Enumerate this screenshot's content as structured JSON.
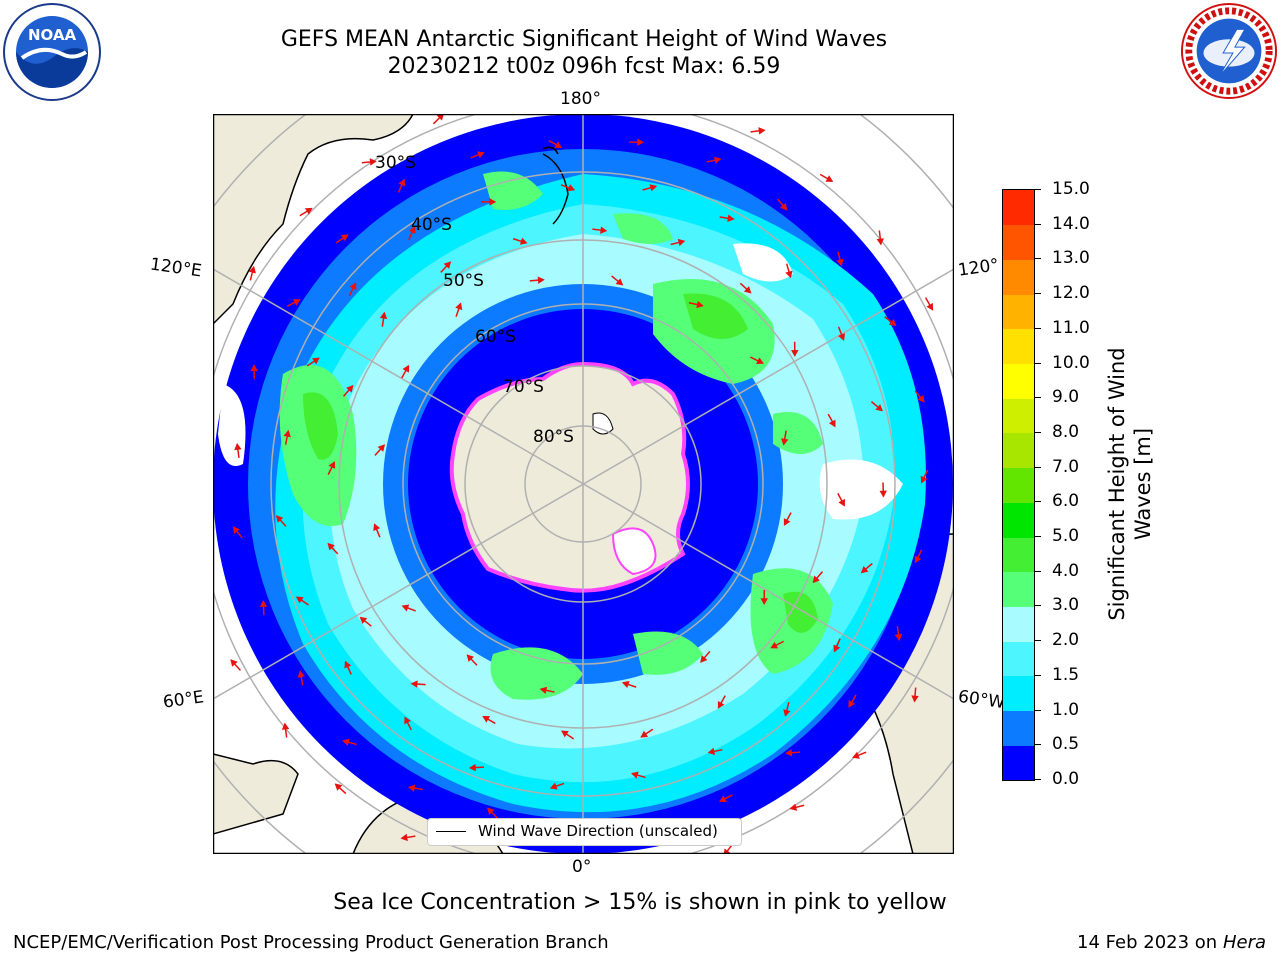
{
  "title": {
    "line1": "GEFS MEAN Antarctic Significant Height of Wind Waves",
    "line2": "20230212 t00z 096h fcst   Max: 6.59"
  },
  "logos": {
    "left": "noaa-logo",
    "left_text": "NOAA",
    "right": "national-weather-service-logo",
    "right_text": "NATIONAL WEATHER SERVICE"
  },
  "map": {
    "projection": "south-polar-stereographic",
    "lon_labels": {
      "top": "180°",
      "bottom": "0°",
      "left_upper": "120°E",
      "left_lower": "60°E",
      "right_upper": "120°",
      "right_lower": "60°W"
    },
    "lat_labels": [
      "30°S",
      "40°S",
      "50°S",
      "60°S",
      "70°S",
      "80°S"
    ],
    "legend": "Wind Wave Direction (unscaled)",
    "colors": {
      "land": "#efebdb",
      "coast": "#000000",
      "grid": "#b0b0b0",
      "ice_pink": "#ff44ff",
      "ice_white": "#ffffff",
      "arrow": "#e8120e"
    }
  },
  "colorbar": {
    "label": "Significant Height of Wind Waves [m]",
    "ticks": [
      "0.0",
      "0.5",
      "1.0",
      "1.5",
      "2.0",
      "3.0",
      "4.0",
      "5.0",
      "6.0",
      "7.0",
      "8.0",
      "9.0",
      "10.0",
      "11.0",
      "12.0",
      "13.0",
      "14.0",
      "15.0"
    ],
    "colors": [
      "#0000ff",
      "#0c7bff",
      "#00ecff",
      "#4cf5ff",
      "#a8fbff",
      "#55ff77",
      "#44ef33",
      "#00e600",
      "#62e600",
      "#a8e600",
      "#cef000",
      "#ffff00",
      "#ffe000",
      "#ffb200",
      "#ff8a00",
      "#ff5500",
      "#ff2a00"
    ]
  },
  "footer": {
    "ice_note": "Sea Ice Concentration > 15% is shown in pink to yellow",
    "credit": "NCEP/EMC/Verification Post Processing Product Generation Branch",
    "date": "14 Feb 2023 on",
    "host": "Hera"
  }
}
